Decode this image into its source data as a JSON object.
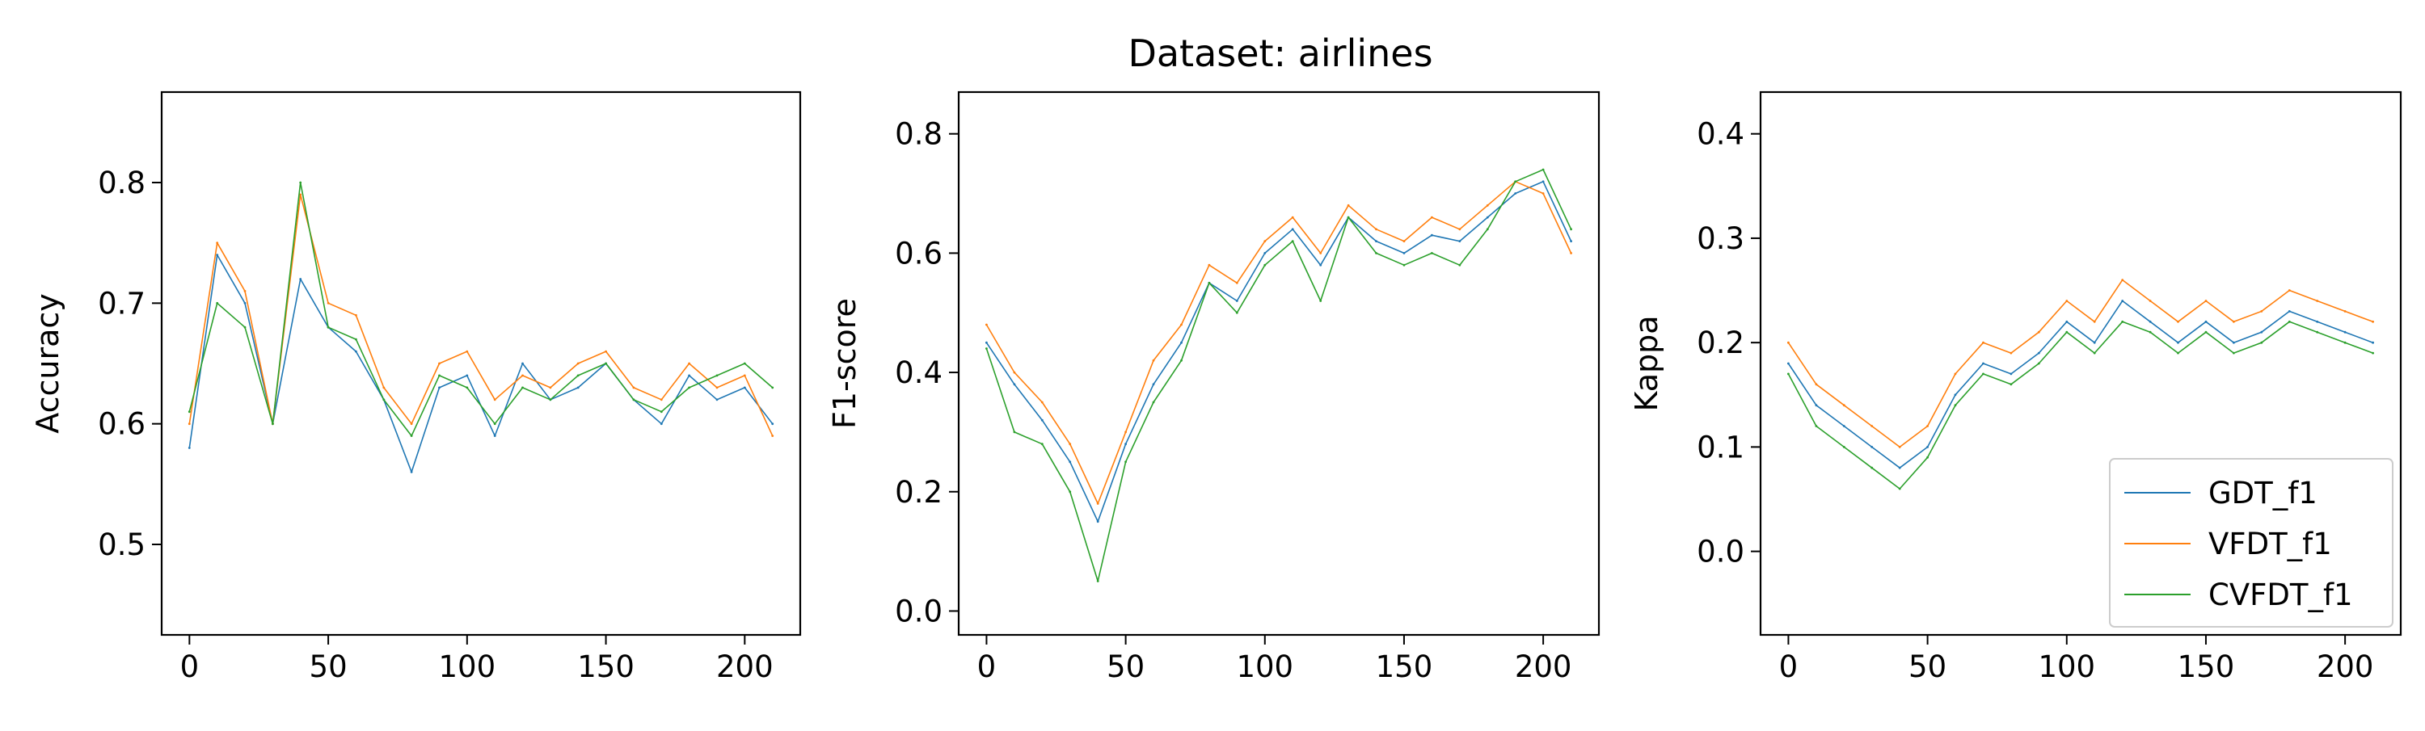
{
  "figure": {
    "suptitle": "Dataset: airlines"
  },
  "chart_data": [
    {
      "type": "line",
      "title": "",
      "xlabel": "",
      "ylabel": "Accuracy",
      "xlim": [
        -10,
        220
      ],
      "ylim": [
        0.425,
        0.875
      ],
      "xticks": [
        0,
        50,
        100,
        150,
        200
      ],
      "xtick_labels": [
        "0",
        "50",
        "100",
        "150",
        "200"
      ],
      "yticks": [
        0.5,
        0.6,
        0.7,
        0.8
      ],
      "ytick_labels": [
        "0.5",
        "0.6",
        "0.7",
        "0.8"
      ],
      "x": [
        0,
        10,
        20,
        30,
        40,
        50,
        60,
        70,
        80,
        90,
        100,
        110,
        120,
        130,
        140,
        150,
        160,
        170,
        180,
        190,
        200,
        210
      ],
      "series": [
        {
          "name": "GDT_f1",
          "color": "#1f77b4",
          "values": [
            0.58,
            0.74,
            0.7,
            0.6,
            0.72,
            0.68,
            0.66,
            0.62,
            0.56,
            0.63,
            0.64,
            0.59,
            0.65,
            0.62,
            0.63,
            0.65,
            0.62,
            0.6,
            0.64,
            0.62,
            0.63,
            0.6
          ]
        },
        {
          "name": "VFDT_f1",
          "color": "#ff7f0e",
          "values": [
            0.6,
            0.75,
            0.71,
            0.6,
            0.79,
            0.7,
            0.69,
            0.63,
            0.6,
            0.65,
            0.66,
            0.62,
            0.64,
            0.63,
            0.65,
            0.66,
            0.63,
            0.62,
            0.65,
            0.63,
            0.64,
            0.59
          ]
        },
        {
          "name": "CVFDT_f1",
          "color": "#2ca02c",
          "values": [
            0.61,
            0.7,
            0.68,
            0.6,
            0.8,
            0.68,
            0.67,
            0.62,
            0.59,
            0.64,
            0.63,
            0.6,
            0.63,
            0.62,
            0.64,
            0.65,
            0.62,
            0.61,
            0.63,
            0.64,
            0.65,
            0.63
          ]
        }
      ]
    },
    {
      "type": "line",
      "title": "Dataset: airlines",
      "xlabel": "",
      "ylabel": "F1-score",
      "xlim": [
        -10,
        220
      ],
      "ylim": [
        -0.04,
        0.87
      ],
      "xticks": [
        0,
        50,
        100,
        150,
        200
      ],
      "xtick_labels": [
        "0",
        "50",
        "100",
        "150",
        "200"
      ],
      "yticks": [
        0.0,
        0.2,
        0.4,
        0.6,
        0.8
      ],
      "ytick_labels": [
        "0.0",
        "0.2",
        "0.4",
        "0.6",
        "0.8"
      ],
      "x": [
        0,
        10,
        20,
        30,
        40,
        50,
        60,
        70,
        80,
        90,
        100,
        110,
        120,
        130,
        140,
        150,
        160,
        170,
        180,
        190,
        200,
        210
      ],
      "series": [
        {
          "name": "GDT_f1",
          "color": "#1f77b4",
          "values": [
            0.45,
            0.38,
            0.32,
            0.25,
            0.15,
            0.28,
            0.38,
            0.45,
            0.55,
            0.52,
            0.6,
            0.64,
            0.58,
            0.66,
            0.62,
            0.6,
            0.63,
            0.62,
            0.66,
            0.7,
            0.72,
            0.62
          ]
        },
        {
          "name": "VFDT_f1",
          "color": "#ff7f0e",
          "values": [
            0.48,
            0.4,
            0.35,
            0.28,
            0.18,
            0.3,
            0.42,
            0.48,
            0.58,
            0.55,
            0.62,
            0.66,
            0.6,
            0.68,
            0.64,
            0.62,
            0.66,
            0.64,
            0.68,
            0.72,
            0.7,
            0.6
          ]
        },
        {
          "name": "CVFDT_f1",
          "color": "#2ca02c",
          "values": [
            0.44,
            0.3,
            0.28,
            0.2,
            0.05,
            0.25,
            0.35,
            0.42,
            0.55,
            0.5,
            0.58,
            0.62,
            0.52,
            0.66,
            0.6,
            0.58,
            0.6,
            0.58,
            0.64,
            0.72,
            0.74,
            0.64
          ]
        }
      ]
    },
    {
      "type": "line",
      "title": "",
      "xlabel": "",
      "ylabel": "Kappa",
      "xlim": [
        -10,
        220
      ],
      "ylim": [
        -0.08,
        0.44
      ],
      "xticks": [
        0,
        50,
        100,
        150,
        200
      ],
      "xtick_labels": [
        "0",
        "50",
        "100",
        "150",
        "200"
      ],
      "yticks": [
        0.0,
        0.1,
        0.2,
        0.3,
        0.4
      ],
      "ytick_labels": [
        "0.0",
        "0.1",
        "0.2",
        "0.3",
        "0.4"
      ],
      "legend": "lower right",
      "x": [
        0,
        10,
        20,
        30,
        40,
        50,
        60,
        70,
        80,
        90,
        100,
        110,
        120,
        130,
        140,
        150,
        160,
        170,
        180,
        190,
        200,
        210
      ],
      "series": [
        {
          "name": "GDT_f1",
          "color": "#1f77b4",
          "values": [
            0.18,
            0.14,
            0.12,
            0.1,
            0.08,
            0.1,
            0.15,
            0.18,
            0.17,
            0.19,
            0.22,
            0.2,
            0.24,
            0.22,
            0.2,
            0.22,
            0.2,
            0.21,
            0.23,
            0.22,
            0.21,
            0.2
          ]
        },
        {
          "name": "VFDT_f1",
          "color": "#ff7f0e",
          "values": [
            0.2,
            0.16,
            0.14,
            0.12,
            0.1,
            0.12,
            0.17,
            0.2,
            0.19,
            0.21,
            0.24,
            0.22,
            0.26,
            0.24,
            0.22,
            0.24,
            0.22,
            0.23,
            0.25,
            0.24,
            0.23,
            0.22
          ]
        },
        {
          "name": "CVFDT_f1",
          "color": "#2ca02c",
          "values": [
            0.17,
            0.12,
            0.1,
            0.08,
            0.06,
            0.09,
            0.14,
            0.17,
            0.16,
            0.18,
            0.21,
            0.19,
            0.22,
            0.21,
            0.19,
            0.21,
            0.19,
            0.2,
            0.22,
            0.21,
            0.2,
            0.19
          ]
        }
      ]
    }
  ]
}
